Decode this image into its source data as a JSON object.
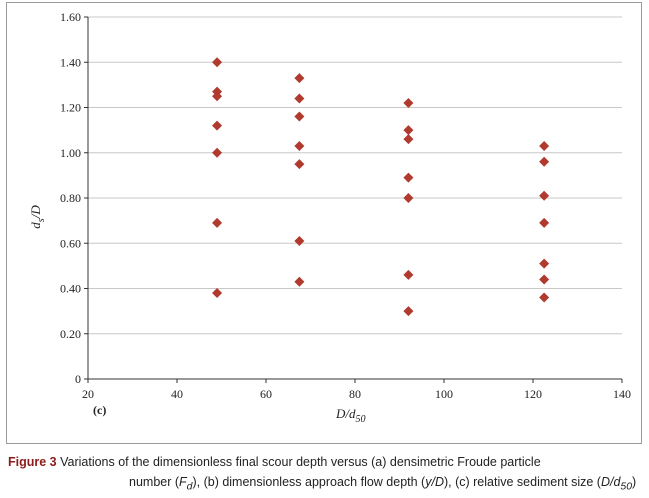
{
  "chart_data": {
    "type": "scatter",
    "panel_label": "(c)",
    "xlabel_main": "D/d",
    "xlabel_sub": "50",
    "ylabel_main": "d",
    "ylabel_sub": "s",
    "ylabel_tail": "/D",
    "xlim": [
      20,
      140
    ],
    "ylim": [
      0,
      1.6
    ],
    "x_ticks": [
      "20",
      "40",
      "60",
      "80",
      "100",
      "120",
      "140"
    ],
    "y_ticks": [
      "0",
      "0.20",
      "0.40",
      "0.60",
      "0.80",
      "1.00",
      "1.20",
      "1.40",
      "1.60"
    ],
    "grid": true,
    "marker_color": "#b03a2e",
    "series": [
      {
        "points": [
          [
            49,
            1.4
          ],
          [
            49,
            1.27
          ],
          [
            49,
            1.25
          ],
          [
            49,
            1.12
          ],
          [
            49,
            1.0
          ],
          [
            49,
            0.69
          ],
          [
            49,
            0.38
          ],
          [
            67.5,
            1.33
          ],
          [
            67.5,
            1.24
          ],
          [
            67.5,
            1.16
          ],
          [
            67.5,
            1.03
          ],
          [
            67.5,
            0.95
          ],
          [
            67.5,
            0.61
          ],
          [
            67.5,
            0.43
          ],
          [
            92,
            1.22
          ],
          [
            92,
            1.1
          ],
          [
            92,
            1.06
          ],
          [
            92,
            0.89
          ],
          [
            92,
            0.8
          ],
          [
            92,
            0.46
          ],
          [
            92,
            0.3
          ],
          [
            122.5,
            1.03
          ],
          [
            122.5,
            0.96
          ],
          [
            122.5,
            0.81
          ],
          [
            122.5,
            0.69
          ],
          [
            122.5,
            0.51
          ],
          [
            122.5,
            0.44
          ],
          [
            122.5,
            0.36
          ]
        ]
      }
    ]
  },
  "caption": {
    "fig_label": "Figure 3",
    "line1": " Variations of the dimensionless final scour depth versus (a) densimetric Froude particle",
    "line2_a": "number (",
    "line2_fd": "F",
    "line2_fd_sub": "d",
    "line2_b": "), (b) dimensionless approach flow depth (",
    "line2_yd": "y/D",
    "line2_c": "), (c) relative sediment size (",
    "line2_dd": "D/d",
    "line2_dd_sub": "50",
    "line2_d": ")"
  }
}
